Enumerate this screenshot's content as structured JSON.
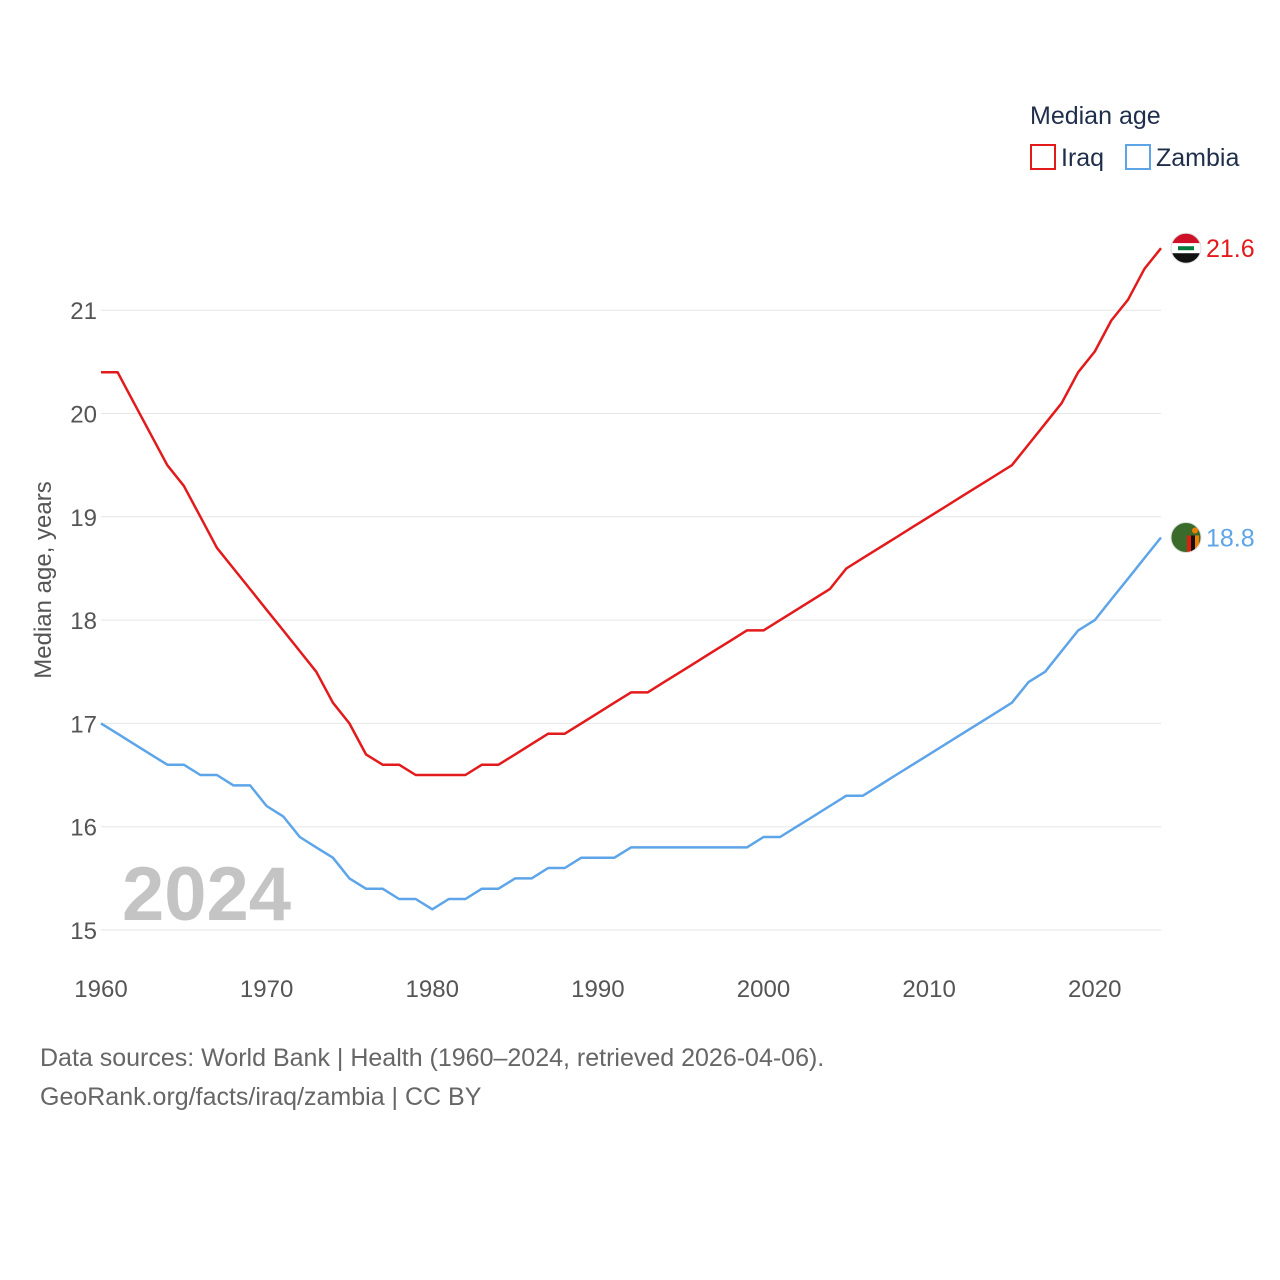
{
  "chart_data": {
    "type": "line",
    "title": "",
    "xlabel": "",
    "ylabel": "Median age, years",
    "xlim": [
      1960,
      2024
    ],
    "ylim": [
      15,
      21.6
    ],
    "yticks": [
      "15",
      "16",
      "17",
      "18",
      "19",
      "20",
      "21"
    ],
    "xticks": [
      "1960",
      "1970",
      "1980",
      "1990",
      "2000",
      "2010",
      "2020"
    ],
    "year_stamp": "2024",
    "legend": {
      "title": "Median age",
      "position": "top-right"
    },
    "x": [
      1960,
      1961,
      1962,
      1963,
      1964,
      1965,
      1966,
      1967,
      1968,
      1969,
      1970,
      1971,
      1972,
      1973,
      1974,
      1975,
      1976,
      1977,
      1978,
      1979,
      1980,
      1981,
      1982,
      1983,
      1984,
      1985,
      1986,
      1987,
      1988,
      1989,
      1990,
      1991,
      1992,
      1993,
      1994,
      1995,
      1996,
      1997,
      1998,
      1999,
      2000,
      2001,
      2002,
      2003,
      2004,
      2005,
      2006,
      2007,
      2008,
      2009,
      2010,
      2011,
      2012,
      2013,
      2014,
      2015,
      2016,
      2017,
      2018,
      2019,
      2020,
      2021,
      2022,
      2023,
      2024
    ],
    "series": [
      {
        "name": "Iraq",
        "color": "#e31a1c",
        "end_label": "21.6",
        "flag": "iraq-flag-icon",
        "values": [
          20.4,
          20.4,
          20.1,
          19.8,
          19.5,
          19.3,
          19.0,
          18.7,
          18.5,
          18.3,
          18.1,
          17.9,
          17.7,
          17.5,
          17.2,
          17.0,
          16.7,
          16.6,
          16.6,
          16.5,
          16.5,
          16.5,
          16.5,
          16.6,
          16.6,
          16.7,
          16.8,
          16.9,
          16.9,
          17.0,
          17.1,
          17.2,
          17.3,
          17.3,
          17.4,
          17.5,
          17.6,
          17.7,
          17.8,
          17.9,
          17.9,
          18.0,
          18.1,
          18.2,
          18.3,
          18.5,
          18.6,
          18.7,
          18.8,
          18.9,
          19.0,
          19.1,
          19.2,
          19.3,
          19.4,
          19.5,
          19.7,
          19.9,
          20.1,
          20.4,
          20.6,
          20.9,
          21.1,
          21.4,
          21.6
        ]
      },
      {
        "name": "Zambia",
        "color": "#5da5e8",
        "end_label": "18.8",
        "flag": "zambia-flag-icon",
        "values": [
          17.0,
          16.9,
          16.8,
          16.7,
          16.6,
          16.6,
          16.5,
          16.5,
          16.4,
          16.4,
          16.2,
          16.1,
          15.9,
          15.8,
          15.7,
          15.5,
          15.4,
          15.4,
          15.3,
          15.3,
          15.2,
          15.3,
          15.3,
          15.4,
          15.4,
          15.5,
          15.5,
          15.6,
          15.6,
          15.7,
          15.7,
          15.7,
          15.8,
          15.8,
          15.8,
          15.8,
          15.8,
          15.8,
          15.8,
          15.8,
          15.9,
          15.9,
          16.0,
          16.1,
          16.2,
          16.3,
          16.3,
          16.4,
          16.5,
          16.6,
          16.7,
          16.8,
          16.9,
          17.0,
          17.1,
          17.2,
          17.4,
          17.5,
          17.7,
          17.9,
          18.0,
          18.2,
          18.4,
          18.6,
          18.8
        ]
      }
    ]
  },
  "footer": {
    "line1": "Data sources: World Bank | Health (1960–2024, retrieved 2026-04-06).",
    "line2": "GeoRank.org/facts/iraq/zambia | CC BY"
  }
}
